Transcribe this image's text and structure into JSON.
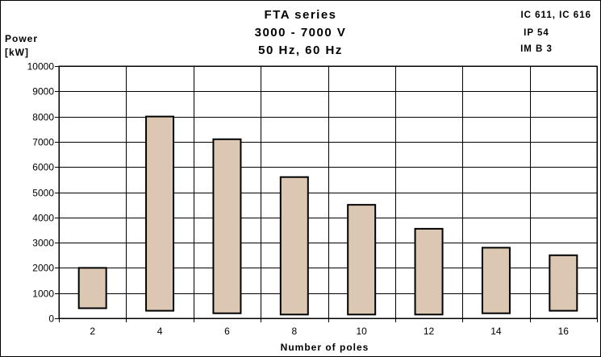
{
  "chart_data": {
    "type": "bar",
    "title_lines": [
      "FTA series",
      "3000 - 7000 V",
      "50 Hz, 60 Hz"
    ],
    "ylabel_lines": [
      "Power",
      "[kW]"
    ],
    "xlabel": "Number of poles",
    "spec_lines": [
      "IC 611, IC 616",
      "IP 54",
      "IM B 3"
    ],
    "categories": [
      "2",
      "4",
      "6",
      "8",
      "10",
      "12",
      "14",
      "16"
    ],
    "series": [
      {
        "low": [
          400,
          300,
          200,
          150,
          150,
          150,
          200,
          300
        ],
        "high": [
          2000,
          8000,
          7100,
          5600,
          4500,
          3550,
          2800,
          2500
        ]
      }
    ],
    "yticks": [
      "0",
      "1000",
      "2000",
      "3000",
      "4000",
      "5000",
      "6000",
      "7000",
      "8000",
      "9000",
      "10000"
    ],
    "ylim": [
      0,
      10000
    ],
    "grid": true,
    "colors": {
      "bar_fill": "#dcc8b2",
      "bar_edge": "#000000",
      "grid": "#000000"
    }
  }
}
